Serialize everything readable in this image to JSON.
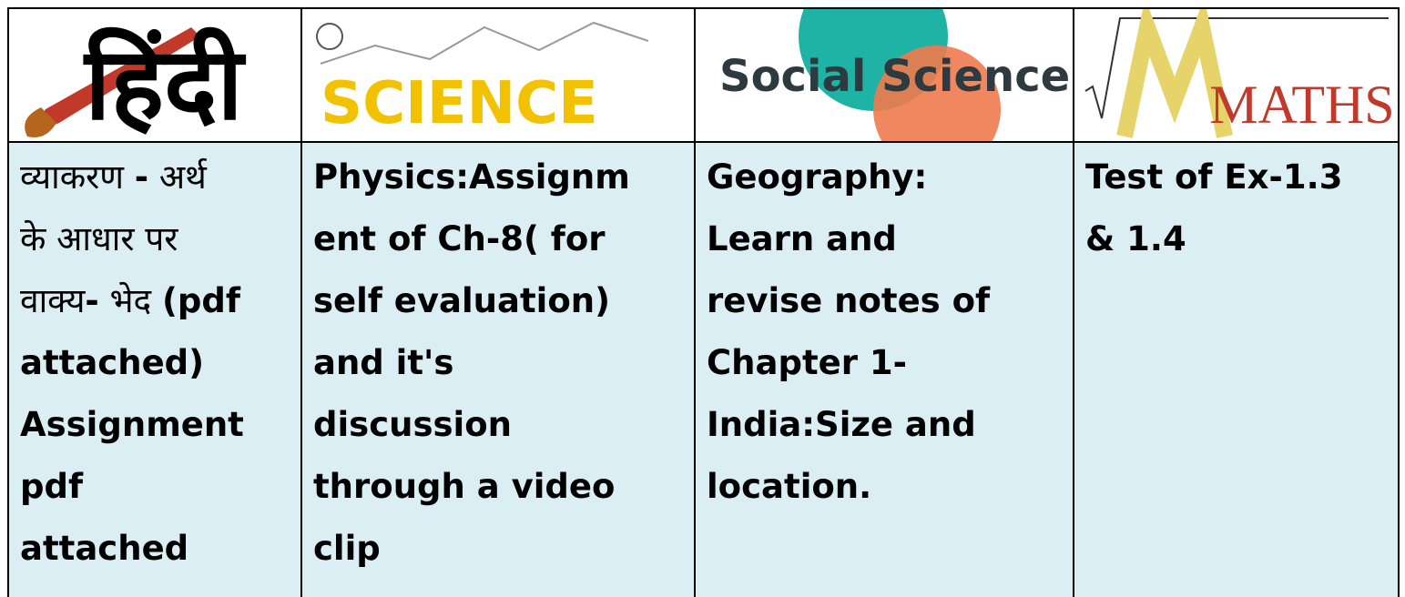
{
  "header": [
    "हिंदी",
    "SCIENCE",
    "Social Science",
    "MATHS"
  ],
  "cells": [
    [
      [
        {
          "text": "व्याकरण ",
          "bold": false
        },
        {
          "text": "-",
          "bold": true
        },
        {
          "text": " अर्थ",
          "bold": false
        }
      ],
      [
        {
          "text": "के आधार पर",
          "bold": false
        }
      ],
      [
        {
          "text": "वाक्य",
          "bold": false
        },
        {
          "text": "-",
          "bold": true
        },
        {
          "text": " भेद ",
          "bold": false
        },
        {
          "text": "(pdf",
          "bold": true
        }
      ],
      [
        {
          "text": "attached)",
          "bold": true
        }
      ],
      [
        {
          "text": "Assignment",
          "bold": true
        }
      ],
      [
        {
          "text": "pdf",
          "bold": true
        }
      ],
      [
        {
          "text": "attached",
          "bold": true
        }
      ]
    ],
    [
      [
        {
          "text": "Physics:Assignm",
          "bold": true
        }
      ],
      [
        {
          "text": "ent of Ch-8( for",
          "bold": true
        }
      ],
      [
        {
          "text": "self evaluation)",
          "bold": true
        }
      ],
      [
        {
          "text": "and it's",
          "bold": true
        }
      ],
      [
        {
          "text": "discussion",
          "bold": true
        }
      ],
      [
        {
          "text": "through a video",
          "bold": true
        }
      ],
      [
        {
          "text": "clip",
          "bold": true
        }
      ]
    ],
    [
      [
        {
          "text": "Geography:",
          "bold": true
        }
      ],
      [
        {
          "text": "Learn and",
          "bold": true
        }
      ],
      [
        {
          "text": "revise notes of",
          "bold": true
        }
      ],
      [
        {
          "text": "Chapter 1-",
          "bold": true
        }
      ],
      [
        {
          "text": "India:Size and",
          "bold": true
        }
      ],
      [
        {
          "text": "location.",
          "bold": true
        }
      ]
    ],
    [
      [
        {
          "text": "Test of Ex-1.3",
          "bold": true
        }
      ],
      [
        {
          "text": "& 1.4",
          "bold": true
        }
      ]
    ]
  ]
}
